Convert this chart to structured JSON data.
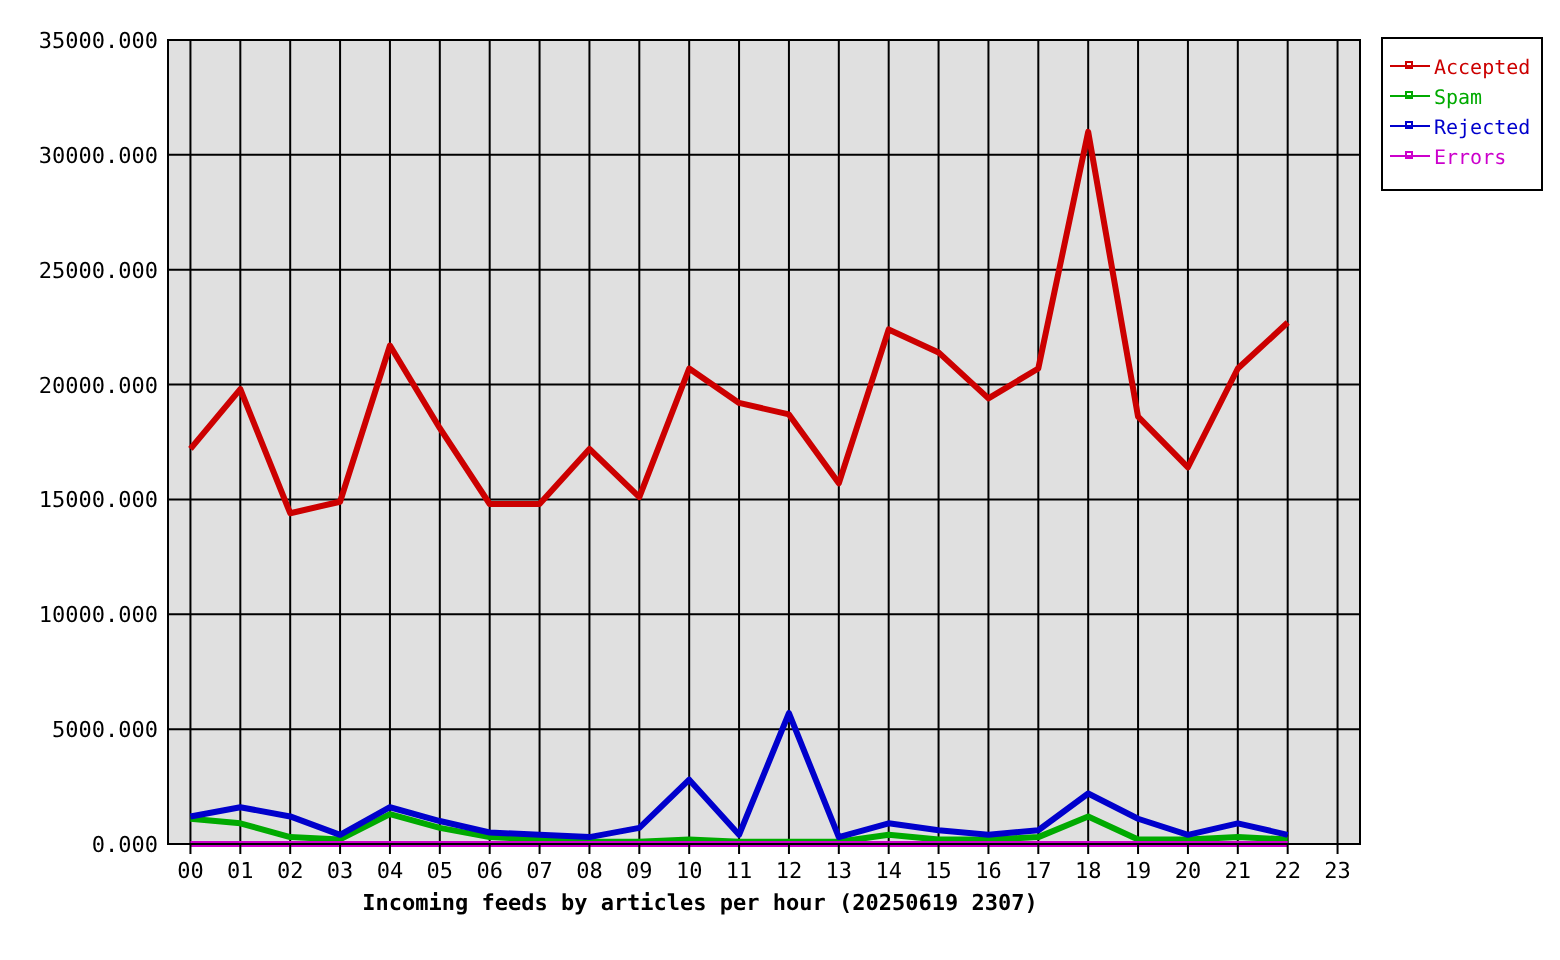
{
  "chart_data": {
    "type": "line",
    "xlabel": "Incoming feeds by articles per hour (20250619 2307)",
    "categories": [
      "00",
      "01",
      "02",
      "03",
      "04",
      "05",
      "06",
      "07",
      "08",
      "09",
      "10",
      "11",
      "12",
      "13",
      "14",
      "15",
      "16",
      "17",
      "18",
      "19",
      "20",
      "21",
      "22",
      "23"
    ],
    "series": [
      {
        "name": "Accepted",
        "color": "#cc0000",
        "values": [
          17200,
          19800,
          14400,
          14900,
          21700,
          18100,
          14800,
          14800,
          17200,
          15100,
          20700,
          19200,
          18700,
          15700,
          22400,
          21400,
          19400,
          20700,
          31000,
          18600,
          16400,
          20700,
          22700,
          null
        ]
      },
      {
        "name": "Spam",
        "color": "#00aa00",
        "values": [
          1100,
          900,
          300,
          200,
          1300,
          700,
          300,
          200,
          100,
          100,
          200,
          100,
          100,
          100,
          400,
          200,
          200,
          300,
          1200,
          200,
          200,
          300,
          200,
          null
        ]
      },
      {
        "name": "Rejected",
        "color": "#0000cc",
        "values": [
          1200,
          1600,
          1200,
          400,
          1600,
          1000,
          500,
          400,
          300,
          700,
          2800,
          400,
          5700,
          300,
          900,
          600,
          400,
          600,
          2200,
          1100,
          400,
          900,
          400,
          null
        ]
      },
      {
        "name": "Errors",
        "color": "#cc00cc",
        "values": [
          0,
          0,
          0,
          0,
          0,
          0,
          0,
          0,
          0,
          0,
          0,
          0,
          0,
          0,
          0,
          0,
          0,
          0,
          0,
          0,
          0,
          0,
          0,
          null
        ]
      }
    ],
    "ylim": [
      0,
      35000
    ],
    "yticks": [
      {
        "value": 0,
        "label": "0.000"
      },
      {
        "value": 5000,
        "label": "5000.000"
      },
      {
        "value": 10000,
        "label": "10000.000"
      },
      {
        "value": 15000,
        "label": "15000.000"
      },
      {
        "value": 20000,
        "label": "20000.000"
      },
      {
        "value": 25000,
        "label": "25000.000"
      },
      {
        "value": 30000,
        "label": "30000.000"
      },
      {
        "value": 35000,
        "label": "35000.000"
      }
    ],
    "grid": true,
    "legend": "top right"
  }
}
